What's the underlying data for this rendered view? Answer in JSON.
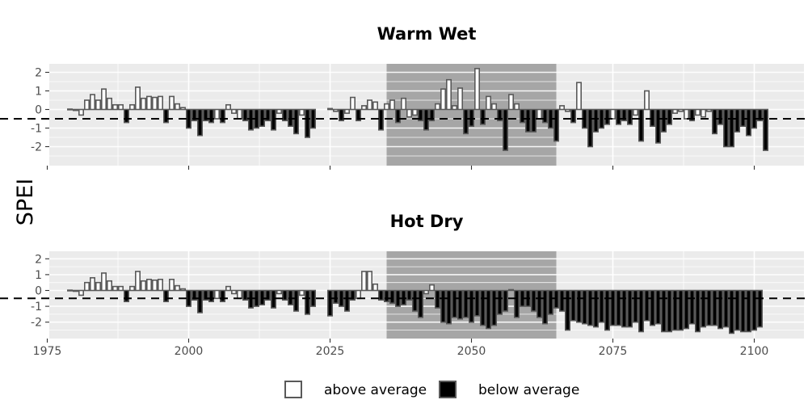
{
  "chart_data": {
    "type": "bar",
    "ylabel": "SPEI",
    "threshold": -0.5,
    "xlim": [
      1975,
      2100
    ],
    "x_ticks": [
      1975,
      2000,
      2025,
      2050,
      2075,
      2100
    ],
    "y_ticks": [
      2,
      1,
      0,
      -1,
      -2
    ],
    "ylim": [
      -2.9,
      2.5
    ],
    "grid": true,
    "legend_position": "bottom",
    "legend": [
      {
        "label": "above average",
        "fill": "#ffffff"
      },
      {
        "label": "below average",
        "fill": "#000000"
      }
    ],
    "colors": {
      "panel_bg": "#ebebeb",
      "grid": "#ffffff",
      "highlight_band": "#a6a6a6",
      "bar_outline": "#595959",
      "above": "#ffffff",
      "below": "#000000"
    },
    "highlight_period": [
      2035,
      2065
    ],
    "panels": [
      {
        "title": "Warm Wet",
        "series": [
          {
            "x_start": 1979,
            "values": [
              0.02,
              -0.05,
              -0.3,
              0.5,
              0.8,
              0.5,
              1.1,
              0.6,
              0.25,
              0.25,
              -0.7,
              0.25,
              1.2,
              0.6,
              0.7,
              0.65,
              0.7,
              -0.7,
              0.7,
              0.3,
              0.1,
              -1.0,
              -0.6,
              -1.4,
              -0.6,
              -0.7,
              -0.5,
              -0.7,
              0.25,
              -0.2,
              -0.5,
              -0.6,
              -1.1,
              -1.0,
              -0.9,
              -0.6,
              -1.1,
              -0.2,
              -0.6,
              -0.9,
              -1.3,
              -0.3,
              -1.5,
              -1.0
            ]
          },
          {
            "x_start": 2025,
            "values": [
              0.05,
              -0.1,
              -0.6,
              -0.2,
              0.65,
              -0.6,
              0.2,
              0.5,
              0.4,
              -1.1,
              0.3,
              0.5,
              -0.7,
              0.6,
              -0.4,
              -0.3,
              -0.6,
              -1.1,
              -0.6,
              0.3,
              1.1,
              1.6,
              0.2,
              1.15,
              -1.3,
              -0.9,
              2.2,
              -0.8,
              0.7,
              0.3,
              -0.6,
              -2.2,
              0.8,
              0.3,
              -0.7,
              -1.2,
              -1.2,
              -0.5,
              -0.7,
              -1.0,
              -1.7,
              0.2,
              -0.1,
              -0.7,
              1.45,
              -1.0,
              -2.0,
              -1.2,
              -1.0,
              -0.8,
              -0.5,
              -0.8,
              -0.6,
              -0.8,
              -0.3,
              -1.7,
              1.0,
              -0.9,
              -1.8,
              -1.2,
              -0.8,
              -0.2,
              -0.1,
              -0.5,
              -0.6,
              -0.3,
              -0.4,
              -0.1,
              -1.3,
              -0.8,
              -2.0,
              -2.0,
              -1.2,
              -0.9,
              -1.4,
              -1.0,
              -0.6,
              -2.2
            ]
          }
        ]
      },
      {
        "title": "Hot Dry",
        "series": [
          {
            "x_start": 1979,
            "values": [
              0.02,
              -0.05,
              -0.3,
              0.5,
              0.8,
              0.5,
              1.1,
              0.6,
              0.25,
              0.25,
              -0.7,
              0.25,
              1.2,
              0.6,
              0.7,
              0.65,
              0.7,
              -0.7,
              0.7,
              0.3,
              0.1,
              -1.0,
              -0.6,
              -1.4,
              -0.6,
              -0.7,
              -0.5,
              -0.7,
              0.25,
              -0.2,
              -0.5,
              -0.6,
              -1.1,
              -1.0,
              -0.9,
              -0.6,
              -1.1,
              -0.2,
              -0.6,
              -0.9,
              -1.3,
              -0.3,
              -1.5,
              -1.0
            ]
          },
          {
            "x_start": 2025,
            "values": [
              -1.6,
              -0.8,
              -1.0,
              -1.3,
              -0.6,
              -0.5,
              1.2,
              1.2,
              0.4,
              -0.6,
              -0.7,
              -0.8,
              -1.0,
              -0.9,
              -0.6,
              -1.3,
              -1.7,
              -0.2,
              0.35,
              -1.1,
              -2.0,
              -2.1,
              -1.7,
              -1.8,
              -1.7,
              -2.0,
              -1.6,
              -2.2,
              -2.4,
              -2.2,
              -1.5,
              -1.3,
              0.05,
              -1.7,
              -1.0,
              -1.0,
              -1.3,
              -1.7,
              -2.1,
              -1.5,
              -1.1,
              -1.3,
              -2.5,
              -1.9,
              -2.0,
              -2.1,
              -2.2,
              -2.3,
              -2.0,
              -2.5,
              -2.2,
              -2.2,
              -2.3,
              -2.3,
              -2.0,
              -2.6,
              -1.9,
              -2.2,
              -2.1,
              -2.6,
              -2.6,
              -2.5,
              -2.5,
              -2.4,
              -2.1,
              -2.6,
              -2.3,
              -2.2,
              -2.2,
              -2.4,
              -2.3,
              -2.7,
              -2.5,
              -2.6,
              -2.6,
              -2.5,
              -2.3
            ]
          }
        ]
      }
    ]
  }
}
